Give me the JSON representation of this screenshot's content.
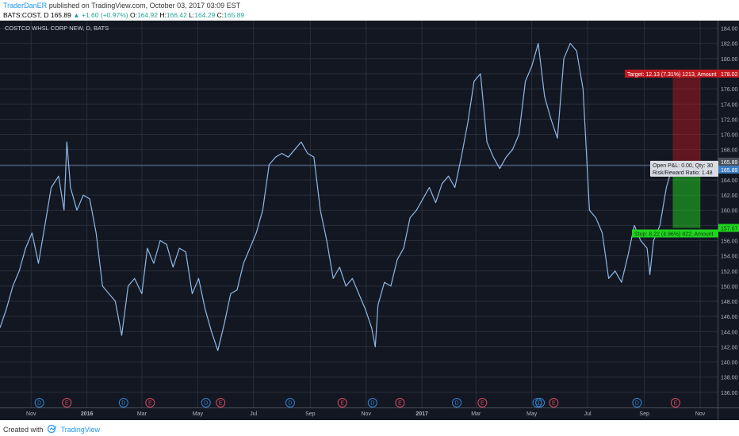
{
  "header": {
    "author": "TraderDanER",
    "published_text": " published on TradingView.com, October 03, 2017 03:09 EST",
    "symbol": "BATS:COST, D",
    "last": "165.89",
    "change": "▲ +1.60 (+0.97%)",
    "o_label": "O:",
    "o": "164.92",
    "h_label": "H:",
    "h": "166.42",
    "l_label": "L:",
    "l": "164.29",
    "c_label": "C:",
    "c": "165.89"
  },
  "footer": {
    "created_with": "Created with",
    "brand": "TradingView"
  },
  "colors": {
    "background": "#131722",
    "line": "#8fb8e6",
    "grid": "#2a2e39",
    "target": "#c2191f",
    "stop": "#21d41f",
    "price_tag": "#3c7cc0"
  },
  "chart_data": {
    "type": "line",
    "title": "COSTCO WHSL CORP NEW, D, BATS",
    "ylim": [
      134,
      185
    ],
    "y_ticks": [
      "136.00",
      "138.00",
      "140.00",
      "142.00",
      "144.00",
      "146.00",
      "148.00",
      "150.00",
      "152.00",
      "154.00",
      "156.00",
      "158.00",
      "160.00",
      "162.00",
      "164.00",
      "166.00",
      "168.00",
      "170.00",
      "172.00",
      "174.00",
      "176.00",
      "178.00",
      "180.00",
      "182.00",
      "184.00"
    ],
    "x_range": [
      "2015-09-28",
      "2017-11-20"
    ],
    "x_ticks": [
      {
        "date": "2015-11-01",
        "label": "Nov",
        "bold": false
      },
      {
        "date": "2016-01-01",
        "label": "2016",
        "bold": true
      },
      {
        "date": "2016-03-01",
        "label": "Mar",
        "bold": false
      },
      {
        "date": "2016-05-01",
        "label": "May",
        "bold": false
      },
      {
        "date": "2016-07-01",
        "label": "Jul",
        "bold": false
      },
      {
        "date": "2016-09-01",
        "label": "Sep",
        "bold": false
      },
      {
        "date": "2016-11-01",
        "label": "Nov",
        "bold": false
      },
      {
        "date": "2017-01-01",
        "label": "2017",
        "bold": true
      },
      {
        "date": "2017-03-01",
        "label": "Mar",
        "bold": false
      },
      {
        "date": "2017-05-01",
        "label": "May",
        "bold": false
      },
      {
        "date": "2017-07-01",
        "label": "Jul",
        "bold": false
      },
      {
        "date": "2017-09-01",
        "label": "Sep",
        "bold": false
      },
      {
        "date": "2017-11-01",
        "label": "Nov",
        "bold": false
      }
    ],
    "series": [
      {
        "values": [
          [
            "2015-09-28",
            144.5
          ],
          [
            "2015-10-05",
            147
          ],
          [
            "2015-10-12",
            150
          ],
          [
            "2015-10-19",
            152
          ],
          [
            "2015-10-26",
            155
          ],
          [
            "2015-11-02",
            157
          ],
          [
            "2015-11-09",
            153
          ],
          [
            "2015-11-16",
            158
          ],
          [
            "2015-11-23",
            163
          ],
          [
            "2015-12-01",
            164.5
          ],
          [
            "2015-12-07",
            160
          ],
          [
            "2015-12-10",
            169
          ],
          [
            "2015-12-14",
            163
          ],
          [
            "2015-12-21",
            160
          ],
          [
            "2015-12-28",
            162
          ],
          [
            "2016-01-04",
            161.5
          ],
          [
            "2016-01-11",
            157
          ],
          [
            "2016-01-18",
            150
          ],
          [
            "2016-01-25",
            149
          ],
          [
            "2016-02-01",
            148
          ],
          [
            "2016-02-08",
            143.5
          ],
          [
            "2016-02-15",
            150
          ],
          [
            "2016-02-22",
            151
          ],
          [
            "2016-03-01",
            149
          ],
          [
            "2016-03-07",
            155
          ],
          [
            "2016-03-14",
            153
          ],
          [
            "2016-03-21",
            156
          ],
          [
            "2016-03-28",
            155.5
          ],
          [
            "2016-04-04",
            152.5
          ],
          [
            "2016-04-11",
            155
          ],
          [
            "2016-04-18",
            154.5
          ],
          [
            "2016-04-25",
            149
          ],
          [
            "2016-05-02",
            151
          ],
          [
            "2016-05-09",
            147
          ],
          [
            "2016-05-16",
            144
          ],
          [
            "2016-05-23",
            141.5
          ],
          [
            "2016-05-30",
            145
          ],
          [
            "2016-06-06",
            149
          ],
          [
            "2016-06-13",
            149.5
          ],
          [
            "2016-06-20",
            153
          ],
          [
            "2016-06-27",
            155
          ],
          [
            "2016-07-04",
            157
          ],
          [
            "2016-07-11",
            160
          ],
          [
            "2016-07-18",
            166
          ],
          [
            "2016-07-25",
            167
          ],
          [
            "2016-08-01",
            167.5
          ],
          [
            "2016-08-08",
            167
          ],
          [
            "2016-08-15",
            168
          ],
          [
            "2016-08-22",
            169
          ],
          [
            "2016-08-29",
            167.5
          ],
          [
            "2016-09-05",
            167
          ],
          [
            "2016-09-12",
            160
          ],
          [
            "2016-09-19",
            156
          ],
          [
            "2016-09-26",
            151
          ],
          [
            "2016-10-03",
            152.5
          ],
          [
            "2016-10-10",
            150
          ],
          [
            "2016-10-17",
            151
          ],
          [
            "2016-10-24",
            149
          ],
          [
            "2016-10-31",
            147
          ],
          [
            "2016-11-07",
            144.5
          ],
          [
            "2016-11-11",
            142
          ],
          [
            "2016-11-14",
            147.5
          ],
          [
            "2016-11-21",
            150.5
          ],
          [
            "2016-11-28",
            150
          ],
          [
            "2016-12-05",
            153.5
          ],
          [
            "2016-12-12",
            155
          ],
          [
            "2016-12-19",
            159
          ],
          [
            "2016-12-26",
            160
          ],
          [
            "2017-01-02",
            161.5
          ],
          [
            "2017-01-09",
            163
          ],
          [
            "2017-01-16",
            161
          ],
          [
            "2017-01-23",
            163.5
          ],
          [
            "2017-01-30",
            164.5
          ],
          [
            "2017-02-06",
            163
          ],
          [
            "2017-02-13",
            167
          ],
          [
            "2017-02-20",
            171.5
          ],
          [
            "2017-02-27",
            177
          ],
          [
            "2017-03-06",
            178
          ],
          [
            "2017-03-13",
            169
          ],
          [
            "2017-03-20",
            167
          ],
          [
            "2017-03-27",
            165.5
          ],
          [
            "2017-04-03",
            167
          ],
          [
            "2017-04-10",
            168
          ],
          [
            "2017-04-17",
            170
          ],
          [
            "2017-04-24",
            177
          ],
          [
            "2017-05-01",
            179
          ],
          [
            "2017-05-08",
            182
          ],
          [
            "2017-05-15",
            175
          ],
          [
            "2017-05-22",
            172
          ],
          [
            "2017-05-29",
            169.5
          ],
          [
            "2017-06-05",
            180
          ],
          [
            "2017-06-12",
            182
          ],
          [
            "2017-06-19",
            181
          ],
          [
            "2017-06-26",
            176
          ],
          [
            "2017-07-03",
            160
          ],
          [
            "2017-07-10",
            159
          ],
          [
            "2017-07-17",
            157
          ],
          [
            "2017-07-24",
            151
          ],
          [
            "2017-07-31",
            152
          ],
          [
            "2017-08-07",
            150.5
          ],
          [
            "2017-08-14",
            154
          ],
          [
            "2017-08-21",
            158
          ],
          [
            "2017-08-28",
            156
          ],
          [
            "2017-09-04",
            155
          ],
          [
            "2017-09-07",
            151.5
          ],
          [
            "2017-09-11",
            156
          ],
          [
            "2017-09-18",
            158
          ],
          [
            "2017-09-25",
            163
          ],
          [
            "2017-10-02",
            165.89
          ]
        ]
      }
    ],
    "events": [
      {
        "type": "D",
        "date": "2015-11-10"
      },
      {
        "type": "E",
        "date": "2015-12-10"
      },
      {
        "type": "D",
        "date": "2016-02-10"
      },
      {
        "type": "E",
        "date": "2016-03-10"
      },
      {
        "type": "D",
        "date": "2016-05-10"
      },
      {
        "type": "E",
        "date": "2016-05-26"
      },
      {
        "type": "D",
        "date": "2016-08-10"
      },
      {
        "type": "E",
        "date": "2016-10-06"
      },
      {
        "type": "D",
        "date": "2016-11-08"
      },
      {
        "type": "E",
        "date": "2016-12-08"
      },
      {
        "type": "D",
        "date": "2017-02-08"
      },
      {
        "type": "E",
        "date": "2017-03-08"
      },
      {
        "type": "D",
        "date": "2017-05-07"
      },
      {
        "type": "D",
        "date": "2017-05-10"
      },
      {
        "type": "E",
        "date": "2017-05-25"
      },
      {
        "type": "D",
        "date": "2017-08-24"
      },
      {
        "type": "E",
        "date": "2017-10-05"
      }
    ],
    "position": {
      "start": "2017-10-02",
      "end": "2017-11-01",
      "entry": 165.89,
      "target": 178.02,
      "stop": 157.67,
      "target_label": "Target: 12.13 (7.31%) 1213, Amount",
      "stop_label": "Stop: 8.22 (4.96%) 822, Amount",
      "info_line1": "Open P&L: 0.00, Qty: 30",
      "info_line2": "Risk/Reward Ratio: 1.48",
      "target_tag": "178.02",
      "stop_tag": "157.67",
      "last_tag": "165.89",
      "entry_tag": "165.89"
    }
  }
}
